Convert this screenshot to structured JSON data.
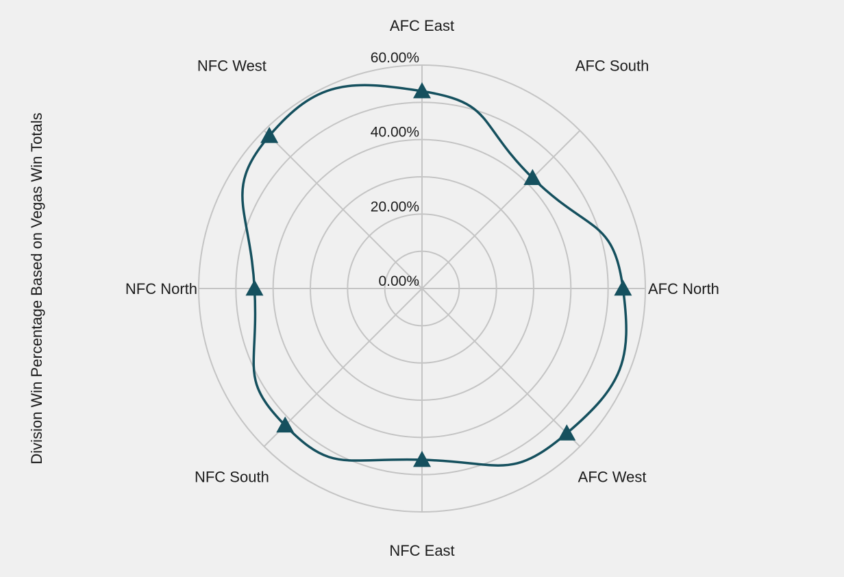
{
  "chart_data": {
    "type": "radar",
    "title": "",
    "ylabel": "Division Win Percentage Based on Vegas Win Totals",
    "categories": [
      "AFC East",
      "AFC South",
      "AFC North",
      "AFC West",
      "NFC East",
      "NFC South",
      "NFC North",
      "NFC West"
    ],
    "series": [
      {
        "values": [
          53.0,
          42.0,
          54.0,
          55.0,
          46.0,
          52.0,
          45.0,
          58.0
        ]
      }
    ],
    "rlim": [
      0,
      60
    ],
    "r_ticks": [
      0,
      20,
      40,
      60
    ],
    "r_tick_labels": [
      "0.00%",
      "20.00%",
      "40.00%",
      "60.00%"
    ],
    "grid": true,
    "colors": {
      "series": "#15505e",
      "grid": "#c4c4c4",
      "background": "#f0f0f0"
    },
    "marker": "triangle"
  }
}
